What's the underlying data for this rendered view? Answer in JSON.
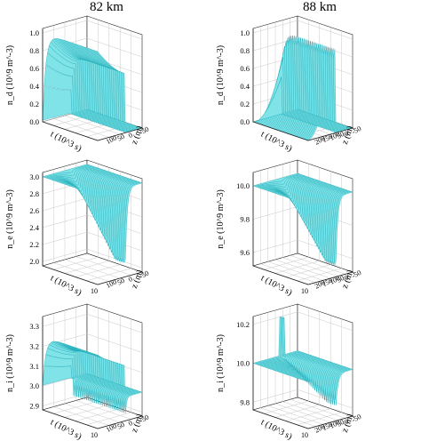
{
  "figure": {
    "column_titles": [
      "82 km",
      "88 km"
    ]
  },
  "style": {
    "surface_fill": "#7fe3e8",
    "surface_line": "#1aa9b5",
    "surface_dark": "#2c8e95",
    "grid_color": "#c8c8c8",
    "axis_color": "#222222"
  },
  "chart_data": [
    {
      "type": "surface3d",
      "panel": "82 km / n_d",
      "zlabel": "n_d (10^9 m^-3)",
      "xlabel": "t (10^3 s)",
      "ylabel": "z (m)",
      "zticks": [
        "0.0",
        "0.2",
        "0.4",
        "0.6",
        "0.8",
        "1.0"
      ],
      "zlim": [
        0,
        1.05
      ],
      "yticks": [
        "100",
        "50",
        "0",
        "-50"
      ],
      "baseline": 0.0,
      "feature": "plateau",
      "peak": 1.0,
      "sag": 0.67,
      "dip": -0.03
    },
    {
      "type": "surface3d",
      "panel": "88 km / n_d",
      "zlabel": "n_d (10^9 m^-3)",
      "xlabel": "t (10^3 s)",
      "ylabel": "z (m)",
      "zticks": [
        "0.0",
        "0.2",
        "0.4",
        "0.6",
        "0.8",
        "1.0"
      ],
      "zlim": [
        0,
        1.05
      ],
      "yticks": [
        "200",
        "150",
        "100",
        "50",
        "0",
        "-50"
      ],
      "baseline": 0.0,
      "feature": "ramp",
      "peak": 1.0,
      "dip": -0.02
    },
    {
      "type": "surface3d",
      "panel": "82 km / n_e",
      "zlabel": "n_e (10^9 m^-3)",
      "xlabel": "t (10^3 s)",
      "ylabel": "z (m)",
      "zticks": [
        "2.0",
        "2.2",
        "2.4",
        "2.6",
        "2.8",
        "3.0"
      ],
      "zlim": [
        1.95,
        3.05
      ],
      "yticks": [
        "100",
        "50",
        "0",
        "-50"
      ],
      "xticks": [
        "10"
      ],
      "baseline": 3.0,
      "feature": "trough",
      "floor": 2.05
    },
    {
      "type": "surface3d",
      "panel": "88 km / n_e",
      "zlabel": "n_e (10^9 m^-3)",
      "xlabel": "t (10^3 s)",
      "ylabel": "z (m)",
      "zticks": [
        "9.6",
        "9.8",
        "10.0"
      ],
      "zlim": [
        9.52,
        10.08
      ],
      "yticks": [
        "200",
        "150",
        "100",
        "50",
        "0",
        "-50"
      ],
      "xticks": [
        "10"
      ],
      "baseline": 10.0,
      "feature": "trough",
      "floor": 9.56
    },
    {
      "type": "surface3d",
      "panel": "82 km / n_i",
      "zlabel": "n_i (10^9 m^-3)",
      "xlabel": "t (10^3 s)",
      "ylabel": "z (m)",
      "zticks": [
        "2.9",
        "3.0",
        "3.1",
        "3.2",
        "3.3"
      ],
      "zlim": [
        2.88,
        3.35
      ],
      "yticks": [
        "100",
        "50",
        "0",
        "-50"
      ],
      "xticks": [
        "10"
      ],
      "baseline": 3.0,
      "feature": "plateau",
      "peak": 3.25,
      "sag": 3.16,
      "dip": 2.9
    },
    {
      "type": "surface3d",
      "panel": "88 km / n_i",
      "zlabel": "n_i (10^9 m^-3)",
      "xlabel": "t (10^3 s)",
      "ylabel": "z (m)",
      "zticks": [
        "9.8",
        "10.0",
        "10.2"
      ],
      "zlim": [
        9.76,
        10.24
      ],
      "yticks": [
        "200",
        "150",
        "100",
        "50",
        "0",
        "-50"
      ],
      "xticks": [
        "10"
      ],
      "baseline": 10.0,
      "feature": "spike_trough",
      "peak": 10.2,
      "floor": 9.82
    }
  ]
}
